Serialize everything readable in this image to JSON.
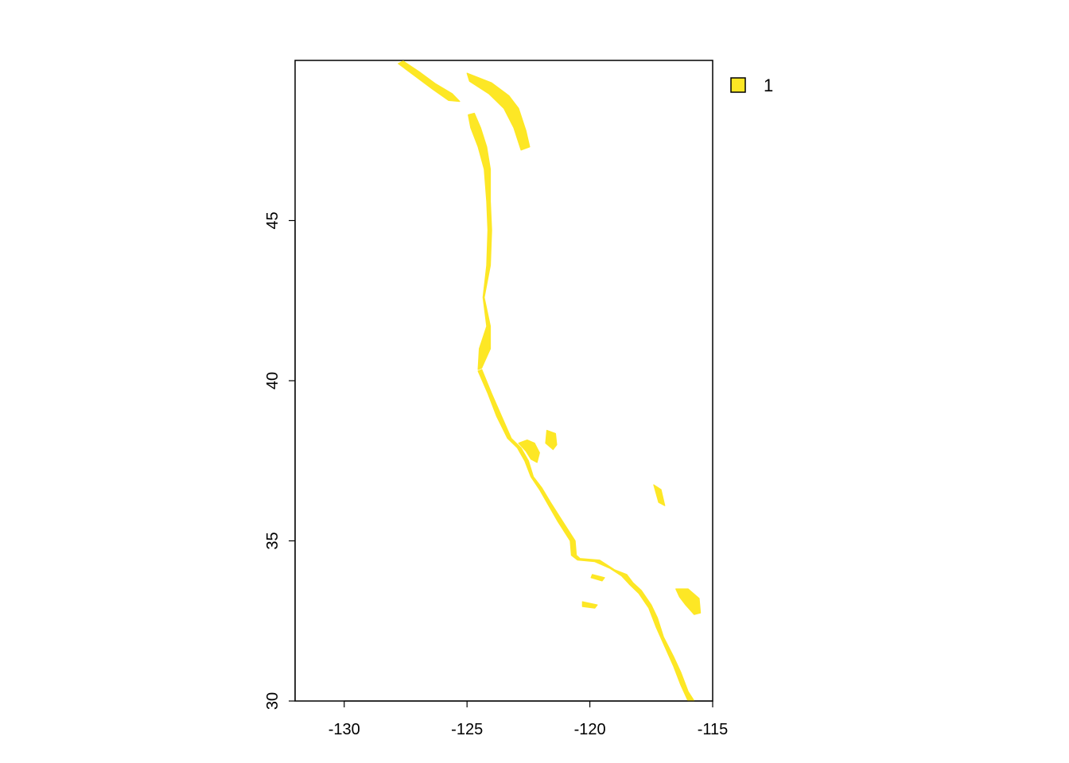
{
  "map": {
    "x_axis": {
      "range": [
        -132,
        -115
      ],
      "ticks": [
        -130,
        -125,
        -120,
        -115
      ],
      "tick_labels": [
        "-130",
        "-125",
        "-120",
        "-115"
      ]
    },
    "y_axis": {
      "range": [
        30,
        50
      ],
      "ticks": [
        30,
        35,
        40,
        45
      ],
      "tick_labels": [
        "30",
        "35",
        "40",
        "45"
      ]
    },
    "fill_color": "#FDE725",
    "legend": {
      "entries": [
        {
          "label": "1",
          "color": "#FDE725"
        }
      ]
    },
    "regions": [
      [
        [
          -127.6,
          49.98
        ],
        [
          -126.9,
          49.62
        ],
        [
          -126.3,
          49.28
        ],
        [
          -125.6,
          48.96
        ],
        [
          -125.3,
          48.72
        ],
        [
          -125.75,
          48.75
        ],
        [
          -126.4,
          49.1
        ],
        [
          -127.1,
          49.5
        ],
        [
          -127.8,
          49.9
        ]
      ],
      [
        [
          -124.7,
          48.35
        ],
        [
          -124.45,
          47.9
        ],
        [
          -124.2,
          47.3
        ],
        [
          -124.05,
          46.6
        ],
        [
          -124.05,
          45.6
        ],
        [
          -124.0,
          44.7
        ],
        [
          -124.05,
          43.6
        ],
        [
          -124.3,
          42.6
        ],
        [
          -124.05,
          41.7
        ],
        [
          -124.05,
          41.0
        ],
        [
          -124.4,
          40.4
        ],
        [
          -124.55,
          40.35
        ],
        [
          -124.5,
          41.0
        ],
        [
          -124.2,
          41.7
        ],
        [
          -124.35,
          42.6
        ],
        [
          -124.2,
          43.6
        ],
        [
          -124.15,
          44.7
        ],
        [
          -124.2,
          45.6
        ],
        [
          -124.3,
          46.6
        ],
        [
          -124.55,
          47.3
        ],
        [
          -124.85,
          47.9
        ],
        [
          -124.95,
          48.3
        ]
      ],
      [
        [
          -124.4,
          40.35
        ],
        [
          -124.0,
          39.6
        ],
        [
          -123.6,
          38.9
        ],
        [
          -123.2,
          38.2
        ],
        [
          -122.8,
          37.9
        ],
        [
          -122.5,
          37.5
        ],
        [
          -122.3,
          37.0
        ],
        [
          -121.95,
          36.65
        ],
        [
          -121.6,
          36.2
        ],
        [
          -121.1,
          35.6
        ],
        [
          -120.6,
          35.0
        ],
        [
          -120.55,
          34.55
        ],
        [
          -120.4,
          34.45
        ],
        [
          -119.6,
          34.4
        ],
        [
          -119.0,
          34.1
        ],
        [
          -118.5,
          33.95
        ],
        [
          -118.25,
          33.7
        ],
        [
          -117.9,
          33.45
        ],
        [
          -117.5,
          33.0
        ],
        [
          -117.25,
          32.6
        ],
        [
          -117.0,
          32.0
        ],
        [
          -116.6,
          31.4
        ],
        [
          -116.3,
          30.9
        ],
        [
          -116.0,
          30.3
        ],
        [
          -115.75,
          30.0
        ],
        [
          -116.0,
          30.0
        ],
        [
          -116.3,
          30.5
        ],
        [
          -116.6,
          31.1
        ],
        [
          -116.95,
          31.7
        ],
        [
          -117.3,
          32.3
        ],
        [
          -117.6,
          32.9
        ],
        [
          -118.0,
          33.35
        ],
        [
          -118.4,
          33.65
        ],
        [
          -118.7,
          33.9
        ],
        [
          -119.2,
          34.15
        ],
        [
          -119.8,
          34.35
        ],
        [
          -120.5,
          34.4
        ],
        [
          -120.75,
          34.55
        ],
        [
          -120.8,
          35.0
        ],
        [
          -121.3,
          35.6
        ],
        [
          -121.75,
          36.2
        ],
        [
          -122.05,
          36.6
        ],
        [
          -122.4,
          37.0
        ],
        [
          -122.65,
          37.5
        ],
        [
          -122.95,
          37.9
        ],
        [
          -123.35,
          38.2
        ],
        [
          -123.8,
          38.9
        ],
        [
          -124.15,
          39.6
        ],
        [
          -124.55,
          40.3
        ]
      ],
      [
        [
          -122.9,
          38.05
        ],
        [
          -122.55,
          38.15
        ],
        [
          -122.25,
          38.05
        ],
        [
          -122.05,
          37.75
        ],
        [
          -122.15,
          37.45
        ],
        [
          -122.4,
          37.55
        ],
        [
          -122.6,
          37.8
        ]
      ],
      [
        [
          -121.75,
          38.45
        ],
        [
          -121.4,
          38.35
        ],
        [
          -121.35,
          38.0
        ],
        [
          -121.5,
          37.85
        ],
        [
          -121.8,
          38.05
        ]
      ],
      [
        [
          -116.5,
          33.5
        ],
        [
          -116.0,
          33.5
        ],
        [
          -115.55,
          33.2
        ],
        [
          -115.5,
          32.75
        ],
        [
          -115.75,
          32.7
        ],
        [
          -116.1,
          33.0
        ],
        [
          -116.35,
          33.25
        ]
      ],
      [
        [
          -125.0,
          49.6
        ],
        [
          -124.0,
          49.3
        ],
        [
          -123.3,
          48.9
        ],
        [
          -122.9,
          48.5
        ],
        [
          -122.6,
          47.8
        ],
        [
          -122.45,
          47.3
        ],
        [
          -122.8,
          47.2
        ],
        [
          -123.1,
          47.9
        ],
        [
          -123.5,
          48.5
        ],
        [
          -124.1,
          48.95
        ],
        [
          -124.9,
          49.35
        ]
      ],
      [
        [
          -117.4,
          36.75
        ],
        [
          -117.1,
          36.6
        ],
        [
          -116.95,
          36.1
        ],
        [
          -117.2,
          36.2
        ]
      ],
      [
        [
          -119.9,
          33.95
        ],
        [
          -119.4,
          33.85
        ],
        [
          -119.5,
          33.75
        ],
        [
          -119.95,
          33.85
        ]
      ],
      [
        [
          -120.3,
          33.1
        ],
        [
          -119.7,
          33.0
        ],
        [
          -119.8,
          32.9
        ],
        [
          -120.3,
          32.95
        ]
      ]
    ]
  }
}
